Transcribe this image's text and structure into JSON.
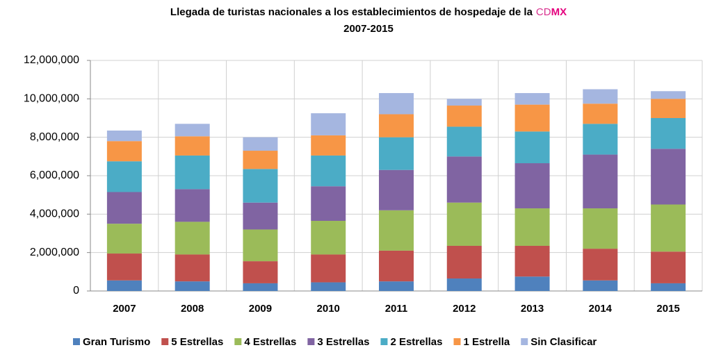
{
  "chart_data": {
    "type": "stacked_bar",
    "title": "Llegada de turistas nacionales a los establecimientos de hospedaje de la",
    "title_accent": [
      "CD",
      "MX"
    ],
    "subtitle": "2007-2015",
    "categories": [
      "2007",
      "2008",
      "2009",
      "2010",
      "2011",
      "2012",
      "2013",
      "2014",
      "2015"
    ],
    "series": [
      {
        "name": "Gran Turismo",
        "color": "#4f81bd",
        "values": [
          550000,
          500000,
          400000,
          450000,
          500000,
          650000,
          750000,
          550000,
          400000
        ]
      },
      {
        "name": "5 Estrellas",
        "color": "#c0504d",
        "values": [
          1400000,
          1400000,
          1150000,
          1450000,
          1600000,
          1700000,
          1600000,
          1650000,
          1650000
        ]
      },
      {
        "name": "4 Estrellas",
        "color": "#9bbb59",
        "values": [
          1550000,
          1700000,
          1650000,
          1750000,
          2100000,
          2250000,
          1950000,
          2100000,
          2450000
        ]
      },
      {
        "name": "3 Estrellas",
        "color": "#8064a2",
        "values": [
          1650000,
          1700000,
          1400000,
          1800000,
          2100000,
          2400000,
          2350000,
          2800000,
          2900000
        ]
      },
      {
        "name": "2 Estrellas",
        "color": "#4bacc6",
        "values": [
          1600000,
          1750000,
          1750000,
          1600000,
          1700000,
          1550000,
          1650000,
          1600000,
          1600000
        ]
      },
      {
        "name": "1 Estrella",
        "color": "#f79646",
        "values": [
          1050000,
          1000000,
          950000,
          1050000,
          1200000,
          1100000,
          1400000,
          1050000,
          1000000
        ]
      },
      {
        "name": "Sin Clasificar",
        "color": "#a5b6e0",
        "values": [
          550000,
          650000,
          700000,
          1150000,
          1100000,
          350000,
          600000,
          750000,
          400000
        ]
      }
    ],
    "ylim": [
      0,
      12000000
    ],
    "yticks": [
      0,
      {
        "value": 2000000,
        "label": "2,000,000"
      },
      {
        "value": 4000000,
        "label": "4,000,000"
      },
      {
        "value": 6000000,
        "label": "6,000,000"
      },
      {
        "value": 8000000,
        "label": "8,000,000"
      },
      {
        "value": 10000000,
        "label": "10,000,000"
      },
      {
        "value": 12000000,
        "label": "12,000,000"
      }
    ],
    "grid": true,
    "legend": "bottom"
  }
}
